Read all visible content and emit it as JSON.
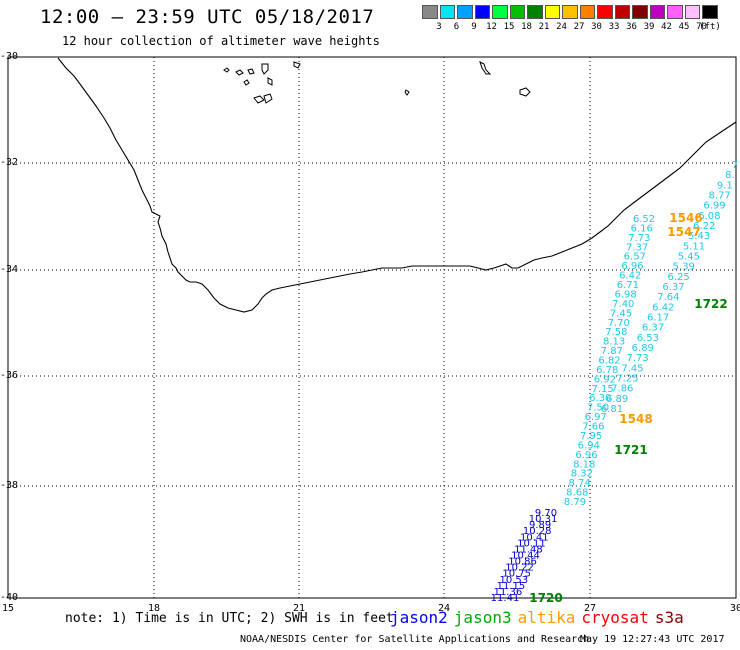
{
  "header": {
    "title": "12:00 – 23:59 UTC 05/18/2017",
    "subtitle": "12 hour collection of altimeter wave heights"
  },
  "color_scale": {
    "unit": "(ft)",
    "bins": [
      {
        "label": "3",
        "color": "#888888"
      },
      {
        "label": "6",
        "color": "#00e5ee"
      },
      {
        "label": "9",
        "color": "#00a0ff"
      },
      {
        "label": "12",
        "color": "#0000ff"
      },
      {
        "label": "15",
        "color": "#00ff40"
      },
      {
        "label": "18",
        "color": "#00c000"
      },
      {
        "label": "21",
        "color": "#008000"
      },
      {
        "label": "24",
        "color": "#ffff00"
      },
      {
        "label": "27",
        "color": "#ffc000"
      },
      {
        "label": "30",
        "color": "#ff8000"
      },
      {
        "label": "33",
        "color": "#ff0000"
      },
      {
        "label": "36",
        "color": "#c00000"
      },
      {
        "label": "39",
        "color": "#800000"
      },
      {
        "label": "42",
        "color": "#c000c0"
      },
      {
        "label": "45",
        "color": "#ff60ff"
      },
      {
        "label": "70",
        "color": "#ffc0ff"
      },
      {
        "label": "",
        "color": "#000000"
      }
    ]
  },
  "axes": {
    "lat_labels": [
      "-30",
      "-32",
      "-34",
      "-36",
      "-38",
      "-40"
    ],
    "lon_labels": [
      "15",
      "18",
      "21",
      "24",
      "27",
      "30"
    ]
  },
  "observations": {
    "cyan_track_1": [
      "7",
      "8.",
      "9.1",
      "8.77",
      "6.99",
      "6.08",
      "6.22",
      "5.43",
      "5.11",
      "5.45",
      "5.39",
      "6.25",
      "6.37",
      "7.64",
      "6.42",
      "6.17",
      "6.37",
      "6.53",
      "6.89",
      "7.73",
      "7.45",
      "7.25",
      "7.86",
      "6.89",
      "6.81"
    ],
    "cyan_track_2": [
      "6.52",
      "6.16",
      "7.73",
      "7.37",
      "6.57",
      "6.96",
      "6.42",
      "6.71",
      "6.98",
      "7.40",
      "7.45",
      "7.70",
      "7.58",
      "8.13",
      "7.87",
      "6.82",
      "6.78",
      "6.92",
      "7.15",
      "6.30",
      "7.50",
      "6.97",
      "7.66",
      "7.95",
      "6.94",
      "6.96",
      "8.18",
      "8.32",
      "8.74",
      "8.68",
      "8.79"
    ],
    "blue_track": [
      "9.70",
      "10.31",
      "9.89",
      "10.28",
      "10.41",
      "10.11",
      "11.48",
      "10.44",
      "10.86",
      "10.22",
      "10.75",
      "10.53",
      "11.15",
      "11.36",
      "11.41"
    ],
    "time_labels": [
      {
        "text": "1546",
        "color": "#ff9900"
      },
      {
        "text": "1547",
        "color": "#ff9900"
      },
      {
        "text": "1722",
        "color": "#008000"
      },
      {
        "text": "1548",
        "color": "#ff9900"
      },
      {
        "text": "1721",
        "color": "#008000"
      },
      {
        "text": "1720",
        "color": "#008000"
      }
    ]
  },
  "legend": {
    "note": "note:  1) Time is in UTC;  2) SWH is in feet",
    "satellites": [
      {
        "name": "jason2",
        "color": "#0000ff"
      },
      {
        "name": "jason3",
        "color": "#00aa00"
      },
      {
        "name": "altika",
        "color": "#ff9900"
      },
      {
        "name": "cryosat",
        "color": "#ff0000"
      },
      {
        "name": "s3a",
        "color": "#880000"
      }
    ]
  },
  "footer": {
    "credit": "NOAA/NESDIS Center for Satellite Applications and Research",
    "timestamp": "May 19 12:27:43 UTC 2017"
  }
}
